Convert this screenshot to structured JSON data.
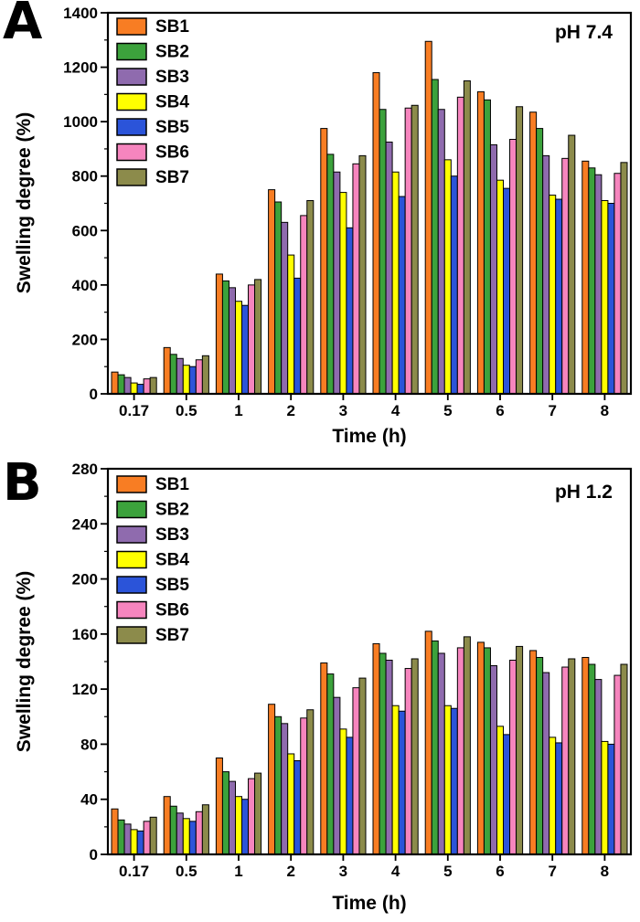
{
  "chart_data": [
    {
      "type": "bar",
      "panel_label": "A",
      "annotation": "pH 7.4",
      "title": "",
      "xlabel": "Time (h)",
      "ylabel": "Swelling degree (%)",
      "ylim": [
        0,
        1400
      ],
      "ytick_interval": 200,
      "grid": false,
      "legend_position": "top-left",
      "categories": [
        "0.17",
        "0.5",
        "1",
        "2",
        "3",
        "4",
        "5",
        "6",
        "7",
        "8"
      ],
      "series": [
        {
          "name": "SB1",
          "color": "#F87D23",
          "values": [
            80,
            170,
            440,
            750,
            975,
            1180,
            1295,
            1110,
            1035,
            855
          ]
        },
        {
          "name": "SB2",
          "color": "#3CA23C",
          "values": [
            70,
            145,
            415,
            705,
            880,
            1045,
            1155,
            1080,
            975,
            830
          ]
        },
        {
          "name": "SB3",
          "color": "#8F6BAE",
          "values": [
            60,
            130,
            390,
            630,
            815,
            925,
            1045,
            915,
            875,
            805
          ]
        },
        {
          "name": "SB4",
          "color": "#FFFF00",
          "values": [
            40,
            105,
            340,
            510,
            740,
            815,
            860,
            785,
            730,
            710
          ]
        },
        {
          "name": "SB5",
          "color": "#2B54D9",
          "values": [
            35,
            100,
            325,
            425,
            610,
            725,
            800,
            755,
            715,
            700
          ]
        },
        {
          "name": "SB6",
          "color": "#F685BE",
          "values": [
            55,
            125,
            400,
            655,
            845,
            1050,
            1090,
            935,
            865,
            810
          ]
        },
        {
          "name": "SB7",
          "color": "#8C8B4B",
          "values": [
            60,
            140,
            420,
            710,
            875,
            1060,
            1150,
            1055,
            950,
            850
          ]
        }
      ]
    },
    {
      "type": "bar",
      "panel_label": "B",
      "annotation": "pH 1.2",
      "title": "",
      "xlabel": "Time (h)",
      "ylabel": "Swelling degree (%)",
      "ylim": [
        0,
        280
      ],
      "ytick_interval": 40,
      "grid": false,
      "legend_position": "top-left",
      "categories": [
        "0.17",
        "0.5",
        "1",
        "2",
        "3",
        "4",
        "5",
        "6",
        "7",
        "8"
      ],
      "series": [
        {
          "name": "SB1",
          "color": "#F87D23",
          "values": [
            33,
            42,
            70,
            109,
            139,
            153,
            162,
            154,
            148,
            143
          ]
        },
        {
          "name": "SB2",
          "color": "#3CA23C",
          "values": [
            25,
            35,
            60,
            100,
            131,
            146,
            155,
            150,
            143,
            138
          ]
        },
        {
          "name": "SB3",
          "color": "#8F6BAE",
          "values": [
            22,
            30,
            53,
            95,
            114,
            141,
            146,
            137,
            132,
            127
          ]
        },
        {
          "name": "SB4",
          "color": "#FFFF00",
          "values": [
            18,
            26,
            42,
            73,
            91,
            108,
            108,
            93,
            85,
            82
          ]
        },
        {
          "name": "SB5",
          "color": "#2B54D9",
          "values": [
            17,
            24,
            40,
            68,
            85,
            104,
            106,
            87,
            81,
            80
          ]
        },
        {
          "name": "SB6",
          "color": "#F685BE",
          "values": [
            24,
            31,
            55,
            99,
            121,
            135,
            150,
            141,
            136,
            130
          ]
        },
        {
          "name": "SB7",
          "color": "#8C8B4B",
          "values": [
            27,
            36,
            59,
            105,
            128,
            142,
            158,
            151,
            142,
            138
          ]
        }
      ]
    }
  ]
}
